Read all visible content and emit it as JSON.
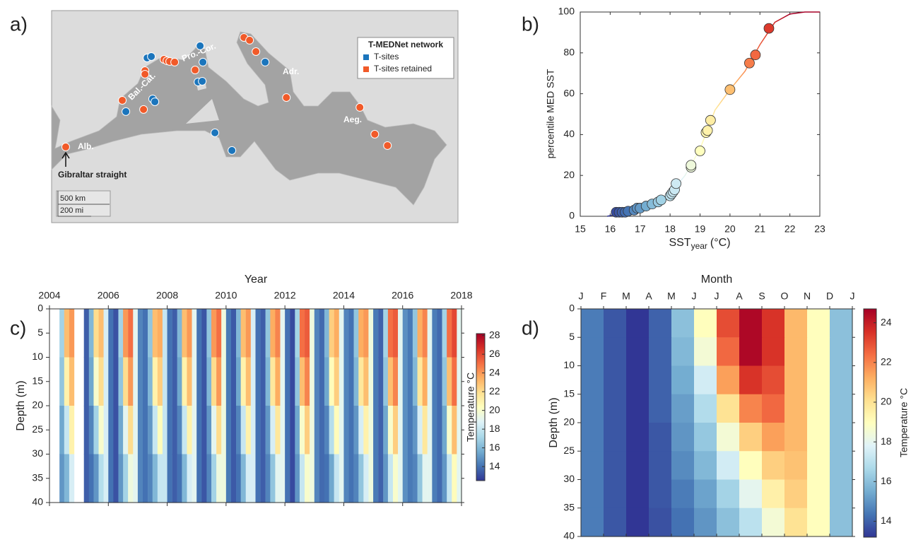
{
  "chart_data": [
    {
      "type": "map",
      "panel_label": "a)",
      "legend_title": "T-MEDNet network",
      "xlim": [
        -7,
        35.3
      ],
      "ylim": [
        29.6,
        47.7
      ],
      "series": [
        {
          "name": "T-sites",
          "color": "#1b75bc",
          "lon": [
            0.73,
            2.94,
            3.38,
            3.52,
            3.75,
            8.46,
            8.75,
            8.24,
            8.68,
            10.0,
            11.77,
            15.23
          ],
          "lat": [
            39.08,
            43.66,
            43.78,
            40.16,
            39.92,
            44.69,
            43.3,
            41.61,
            41.67,
            37.27,
            35.76,
            43.3
          ]
        },
        {
          "name": "T-sites retained",
          "color": "#f15a29",
          "lon": [
            -5.53,
            0.36,
            2.57,
            2.72,
            2.72,
            4.7,
            5.0,
            5.29,
            5.81,
            7.94,
            13.02,
            13.61,
            14.27,
            17.44,
            25.09,
            26.64,
            27.96
          ],
          "lat": [
            36.06,
            40.04,
            39.26,
            42.57,
            42.27,
            43.54,
            43.42,
            43.36,
            43.3,
            42.63,
            45.41,
            45.17,
            44.2,
            40.28,
            39.44,
            37.15,
            36.18
          ]
        }
      ],
      "region_labels": [
        "Alb.",
        "Bal.-Cat.",
        "Pro.-Cor.",
        "Adr.",
        "Aeg."
      ],
      "annotation": "Gibraltar straight",
      "scale_labels": [
        "500 km",
        "200 mi"
      ]
    },
    {
      "type": "scatter",
      "panel_label": "b)",
      "xlabel": "SST",
      "xlabel_subscript": "year",
      "xlabel_unit": "(°C)",
      "ylabel": "percentile MED SST",
      "xlim": [
        15,
        23
      ],
      "xticks": [
        15,
        16,
        17,
        18,
        19,
        20,
        21,
        22,
        23
      ],
      "ylim": [
        0,
        100
      ],
      "yticks": [
        0,
        20,
        40,
        60,
        80,
        100
      ],
      "clim": [
        16,
        22
      ],
      "colormap": [
        "#313695",
        "#4575b4",
        "#74add1",
        "#abd9e9",
        "#e0f3f8",
        "#ffffbf",
        "#fee090",
        "#fdae61",
        "#f46d43",
        "#d73027",
        "#a50026"
      ],
      "line": {
        "x": [
          15.9,
          16.2,
          16.6,
          17,
          17.5,
          18,
          18.5,
          19,
          19.5,
          20,
          20.5,
          21,
          21.5,
          22,
          22.5,
          23
        ],
        "y": [
          0,
          1,
          2,
          3.5,
          7,
          11,
          20,
          33,
          52,
          62,
          71,
          84,
          95,
          99,
          100,
          100
        ]
      },
      "points": {
        "x": [
          16.2,
          16.3,
          16.4,
          16.5,
          16.6,
          16.8,
          16.9,
          17.0,
          17.2,
          17.4,
          17.6,
          17.7,
          18.0,
          18.05,
          18.1,
          18.15,
          18.2,
          18.7,
          18.7,
          19.0,
          19.2,
          19.25,
          19.35,
          20.0,
          20.65,
          20.85,
          21.3
        ],
        "y": [
          2,
          2,
          2,
          2,
          2.5,
          3,
          4,
          4,
          5,
          6,
          7,
          8,
          10,
          11,
          12,
          13,
          16,
          24,
          25,
          32,
          41,
          42,
          47,
          62,
          75,
          79,
          92
        ]
      }
    },
    {
      "type": "heatmap",
      "panel_label": "c)",
      "xlabel": "Year",
      "ylabel": "Depth (m)",
      "colorbar_label": "Temperature °C",
      "xlim": [
        2004,
        2018
      ],
      "xticks": [
        2004,
        2006,
        2008,
        2010,
        2012,
        2014,
        2016,
        2018
      ],
      "ylim": [
        0,
        40
      ],
      "yticks": [
        0,
        5,
        10,
        15,
        20,
        25,
        30,
        35,
        40
      ],
      "clim": [
        12.5,
        28.2
      ],
      "cticks": [
        14,
        16,
        18,
        20,
        22,
        24,
        26,
        28
      ],
      "colormap": [
        "#313695",
        "#4575b4",
        "#74add1",
        "#abd9e9",
        "#e0f3f8",
        "#ffffbf",
        "#fee090",
        "#fdae61",
        "#f46d43",
        "#d73027",
        "#a50026"
      ],
      "depths": [
        5,
        15,
        25,
        35
      ],
      "x": [
        2004.42,
        2004.58,
        2004.75,
        2004.92,
        2005.08,
        2005.25,
        2005.42,
        2005.58,
        2005.75,
        2005.92,
        2006.08,
        2006.25,
        2006.42,
        2006.58,
        2006.75,
        2006.92,
        2007.08,
        2007.25,
        2007.42,
        2007.58,
        2007.75,
        2007.92,
        2008.08,
        2008.25,
        2008.42,
        2008.58,
        2008.75,
        2008.92,
        2009.08,
        2009.25,
        2009.42,
        2009.58,
        2009.75,
        2009.92,
        2010.08,
        2010.25,
        2010.42,
        2010.58,
        2010.75,
        2010.92,
        2011.08,
        2011.25,
        2011.42,
        2011.58,
        2011.75,
        2011.92,
        2012.08,
        2012.25,
        2012.42,
        2012.58,
        2012.75,
        2012.92,
        2013.08,
        2013.25,
        2013.42,
        2013.58,
        2013.75,
        2013.92,
        2014.08,
        2014.25,
        2014.42,
        2014.58,
        2014.75,
        2014.92,
        2015.08,
        2015.25,
        2015.42,
        2015.58,
        2015.75,
        2015.92,
        2016.08,
        2016.25,
        2016.42,
        2016.58,
        2016.75,
        2016.92,
        2017.08,
        2017.25,
        2017.42,
        2017.58,
        2017.75,
        2017.92
      ],
      "values": [
        [
          17,
          23,
          24,
          null,
          null,
          13.5,
          16,
          22,
          23,
          18.5,
          14,
          13.2,
          17,
          24,
          25,
          19,
          14.5,
          14,
          16.5,
          23,
          23.5,
          18,
          14,
          13.5,
          16,
          23,
          24,
          19,
          14,
          13.3,
          16.5,
          24,
          25,
          19.5,
          14.2,
          13.4,
          16,
          23,
          24,
          18.5,
          14,
          13.5,
          16.5,
          23.5,
          24.5,
          19,
          14,
          13,
          17,
          25,
          25.5,
          19.5,
          14.5,
          13.8,
          16,
          22.5,
          23.5,
          19,
          14.5,
          14,
          16.5,
          23.5,
          24,
          19.5,
          14.2,
          13.6,
          17,
          25,
          25.5,
          19,
          14.8,
          14.2,
          16.5,
          23.5,
          24.5,
          19,
          14.3,
          13.8,
          17,
          25,
          26,
          19
        ],
        [
          16.5,
          21,
          23,
          null,
          null,
          13.5,
          15.5,
          20,
          22,
          18.5,
          14,
          13.2,
          16.5,
          22,
          24,
          19,
          14.5,
          14,
          16,
          21,
          22.5,
          18,
          14,
          13.5,
          15.5,
          21,
          23,
          19,
          14,
          13.3,
          16,
          22,
          24,
          19.5,
          14.2,
          13.4,
          15.5,
          21,
          23,
          18.5,
          14,
          13.5,
          16,
          21.5,
          23.5,
          19,
          14,
          13,
          16.5,
          23,
          24.5,
          19.5,
          14.5,
          13.8,
          15.5,
          20.5,
          22.5,
          19,
          14.5,
          14,
          16,
          21.5,
          23,
          19.5,
          14.2,
          13.6,
          16.5,
          23,
          24.5,
          19,
          14.8,
          14.2,
          16,
          21.5,
          23.5,
          19,
          14.3,
          13.8,
          16.5,
          23,
          25,
          19
        ],
        [
          15.5,
          18,
          21,
          null,
          null,
          13.5,
          14.5,
          17,
          20,
          18.5,
          14,
          13.2,
          15.5,
          19,
          22,
          19,
          14.5,
          14,
          15,
          18,
          20.5,
          18,
          14,
          13.5,
          14.5,
          18,
          21,
          19,
          14,
          13.3,
          15,
          19,
          22,
          19.5,
          14.2,
          13.4,
          14.5,
          18,
          21,
          18.5,
          14,
          13.5,
          15,
          18.5,
          21.5,
          19,
          14,
          13,
          15.5,
          20,
          22.5,
          19.5,
          14.5,
          13.8,
          14.5,
          17.5,
          20.5,
          19,
          14.5,
          14,
          15,
          18.5,
          21,
          19.5,
          14.2,
          13.6,
          15.5,
          20,
          22.5,
          19,
          14.8,
          14.2,
          15,
          18.5,
          21.5,
          19,
          14.3,
          13.8,
          15.5,
          20,
          23,
          19
        ],
        [
          15,
          16,
          18.5,
          null,
          null,
          13.5,
          14,
          15,
          17.5,
          18.5,
          14,
          13.2,
          15,
          17,
          19.5,
          19,
          14.5,
          14,
          14.5,
          16,
          18,
          18,
          14,
          13.5,
          14,
          16,
          18.5,
          19,
          14,
          13.3,
          14.5,
          17,
          19.5,
          19.5,
          14.2,
          13.4,
          14,
          16,
          18.5,
          18.5,
          14,
          13.5,
          14.5,
          16.5,
          19,
          19,
          14,
          13,
          15,
          18,
          20,
          19.5,
          14.5,
          13.8,
          14,
          15.5,
          18,
          19,
          14.5,
          14,
          14.5,
          16.5,
          18.5,
          19.5,
          14.2,
          13.6,
          15,
          18,
          20,
          19,
          14.8,
          14.2,
          14.5,
          16.5,
          19,
          19,
          14.3,
          13.8,
          15,
          18,
          20.5,
          19
        ]
      ]
    },
    {
      "type": "heatmap",
      "panel_label": "d)",
      "xlabel": "Month",
      "ylabel": "Depth (m)",
      "colorbar_label": "Temperature °C",
      "categories": [
        "J",
        "F",
        "M",
        "A",
        "M",
        "J",
        "J",
        "A",
        "S",
        "O",
        "N",
        "D",
        "J"
      ],
      "ylim": [
        0,
        40
      ],
      "yticks": [
        0,
        5,
        10,
        15,
        20,
        25,
        30,
        35,
        40
      ],
      "clim": [
        13.2,
        24.7
      ],
      "cticks": [
        14,
        16,
        18,
        20,
        22,
        24
      ],
      "colormap": [
        "#313695",
        "#4575b4",
        "#74add1",
        "#abd9e9",
        "#e0f3f8",
        "#ffffbf",
        "#fee090",
        "#fdae61",
        "#f46d43",
        "#d73027",
        "#a50026"
      ],
      "depths": [
        2.5,
        7.5,
        12.5,
        17.5,
        22.5,
        27.5,
        32.5,
        37.5
      ],
      "values": [
        [
          14.5,
          13.8,
          13.2,
          14,
          16,
          19,
          23,
          24.5,
          23.5,
          21,
          19,
          16
        ],
        [
          14.5,
          13.8,
          13.2,
          14,
          15.8,
          18.5,
          22.5,
          24.5,
          23.5,
          21,
          19,
          16
        ],
        [
          14.5,
          13.8,
          13.2,
          14,
          15.5,
          17.5,
          21.5,
          23.5,
          23,
          21,
          19,
          16
        ],
        [
          14.5,
          13.8,
          13.2,
          14,
          15.2,
          16.8,
          20,
          22,
          22.5,
          21,
          19,
          16
        ],
        [
          14.5,
          13.8,
          13.2,
          13.8,
          15,
          16.2,
          18.5,
          20.5,
          21.5,
          21,
          19,
          16
        ],
        [
          14.5,
          13.8,
          13.2,
          13.8,
          14.8,
          15.8,
          17.5,
          19,
          20.5,
          20.8,
          19,
          16
        ],
        [
          14.5,
          13.8,
          13.2,
          13.8,
          14.5,
          15.3,
          16.5,
          18,
          19.5,
          20.5,
          19,
          16
        ],
        [
          14.5,
          13.8,
          13.2,
          13.7,
          14.3,
          15,
          16,
          17,
          18.5,
          20,
          19,
          16
        ]
      ]
    }
  ]
}
